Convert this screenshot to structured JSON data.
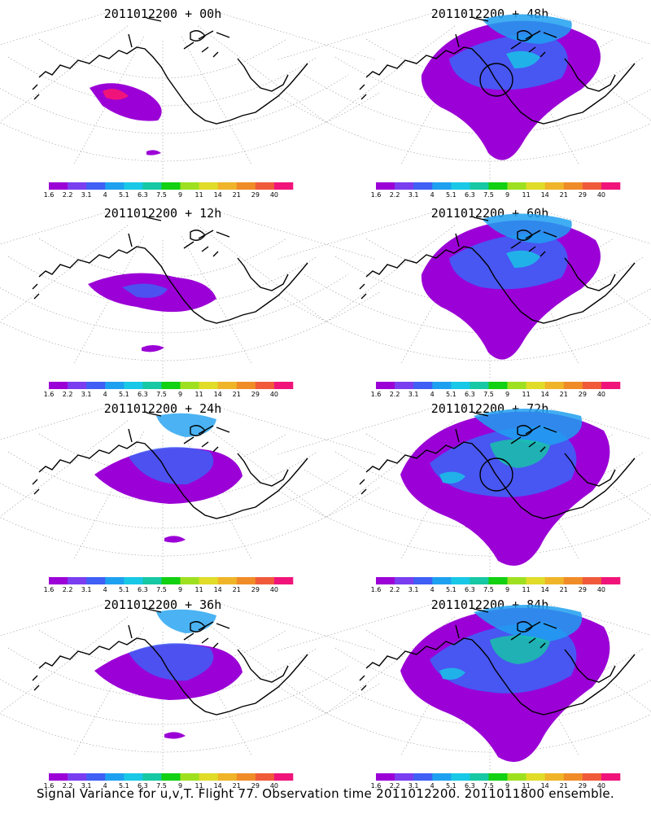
{
  "figure": {
    "caption": "Signal Variance for u,v,T. Flight 77. Observation time 2011012200. 2011011800 ensemble."
  },
  "colorbar": {
    "labels": [
      "1.6",
      "2.2",
      "3.1",
      "4",
      "5.1",
      "6.3",
      "7.5",
      "9",
      "11",
      "14",
      "21",
      "29",
      "40"
    ],
    "colors": [
      "#9b00d6",
      "#7a3df0",
      "#3f5ff5",
      "#1ea0f0",
      "#18c8e6",
      "#16c8a4",
      "#12d012",
      "#9ee020",
      "#e0dc28",
      "#f0b428",
      "#f08c28",
      "#f05a3a",
      "#f0147a"
    ]
  },
  "panels": [
    {
      "title": "2011012200 + 00h",
      "lead": "00h",
      "coverage": "trace",
      "circle": false
    },
    {
      "title": "2011012200 + 48h",
      "lead": "48h",
      "coverage": "broad",
      "circle": true
    },
    {
      "title": "2011012200 + 12h",
      "lead": "12h",
      "coverage": "small",
      "circle": false
    },
    {
      "title": "2011012200 + 60h",
      "lead": "60h",
      "coverage": "broad",
      "circle": false
    },
    {
      "title": "2011012200 + 24h",
      "lead": "24h",
      "coverage": "medium",
      "circle": false
    },
    {
      "title": "2011012200 + 72h",
      "lead": "72h",
      "coverage": "wide",
      "circle": true
    },
    {
      "title": "2011012200 + 36h",
      "lead": "36h",
      "coverage": "medium",
      "circle": false
    },
    {
      "title": "2011012200 + 84h",
      "lead": "84h",
      "coverage": "wide",
      "circle": false
    }
  ]
}
